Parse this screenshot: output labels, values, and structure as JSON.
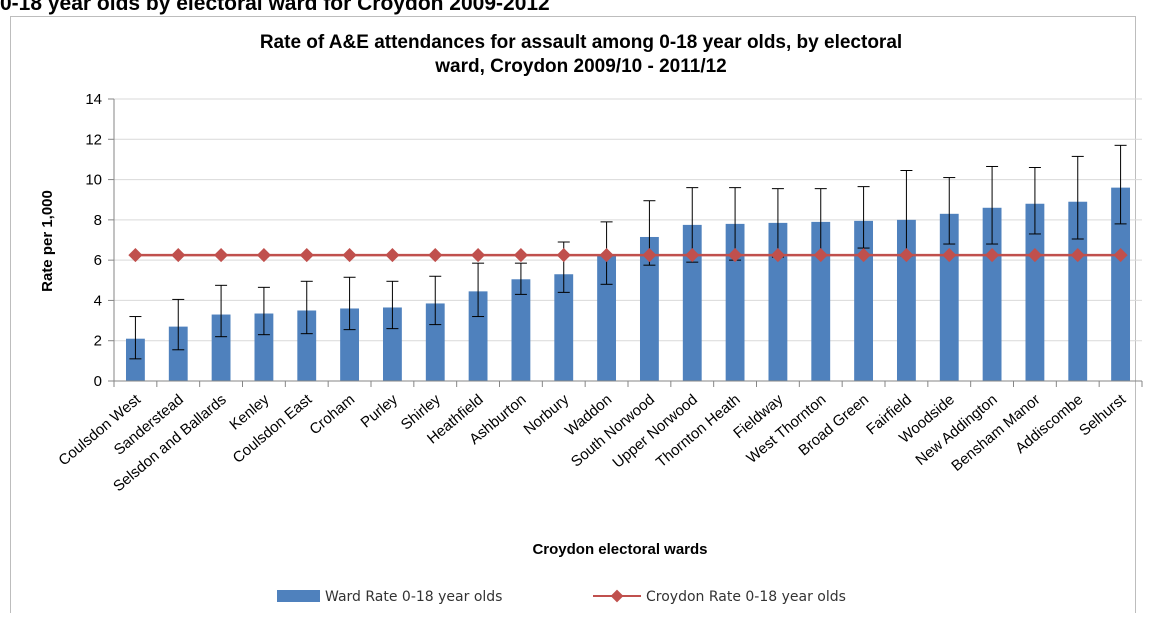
{
  "page_heading": "0-18 year olds by electoral ward for Croydon 2009-2012",
  "chart_data": {
    "type": "bar",
    "title_line1": "Rate of A&E attendances for assault among 0-18 year olds, by electoral",
    "title_line2": "ward, Croydon 2009/10 - 2011/12",
    "xlabel": "Croydon electoral wards",
    "ylabel": "Rate per 1,000",
    "ylim": [
      0,
      14
    ],
    "yticks": [
      0,
      2,
      4,
      6,
      8,
      10,
      12,
      14
    ],
    "grid": true,
    "legend_position": "bottom",
    "categories": [
      "Coulsdon West",
      "Sanderstead",
      "Selsdon and Ballards",
      "Kenley",
      "Coulsdon East",
      "Croham",
      "Purley",
      "Shirley",
      "Heathfield",
      "Ashburton",
      "Norbury",
      "Waddon",
      "South Norwood",
      "Upper Norwood",
      "Thornton Heath",
      "Fieldway",
      "West Thornton",
      "Broad Green",
      "Fairfield",
      "Woodside",
      "New Addington",
      "Bensham Manor",
      "Addiscombe",
      "Selhurst"
    ],
    "series": [
      {
        "name": "Ward Rate 0-18 year olds",
        "type": "bar",
        "color": "#4f81bd",
        "values": [
          2.1,
          2.7,
          3.3,
          3.35,
          3.5,
          3.6,
          3.65,
          3.85,
          4.45,
          5.05,
          5.3,
          6.3,
          7.15,
          7.75,
          7.8,
          7.85,
          7.9,
          7.95,
          8.0,
          8.3,
          8.6,
          8.8,
          8.9,
          9.6
        ],
        "error_low": [
          1.1,
          1.55,
          2.2,
          2.3,
          2.35,
          2.55,
          2.6,
          2.8,
          3.2,
          4.3,
          4.4,
          4.8,
          5.75,
          5.9,
          6.0,
          6.15,
          6.25,
          6.6,
          6.2,
          6.8,
          6.8,
          7.3,
          7.05,
          7.8
        ],
        "error_high": [
          3.2,
          4.05,
          4.75,
          4.65,
          4.95,
          5.15,
          4.95,
          5.2,
          5.85,
          5.85,
          6.9,
          7.9,
          8.95,
          9.6,
          9.6,
          9.55,
          9.55,
          9.65,
          10.45,
          10.1,
          10.65,
          10.6,
          11.15,
          11.7
        ]
      },
      {
        "name": "Croydon Rate 0-18 year olds",
        "type": "line",
        "color": "#c0504d",
        "value": 6.25
      }
    ]
  }
}
